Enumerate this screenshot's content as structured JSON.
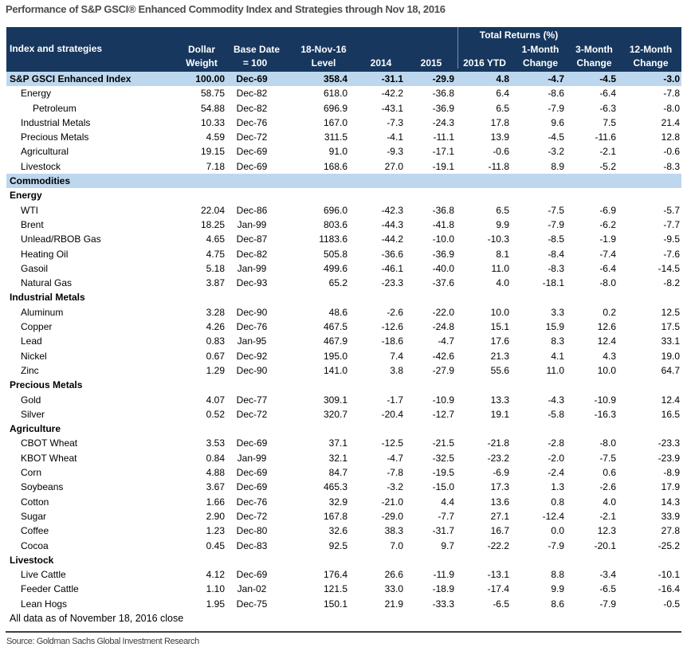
{
  "title": "Performance of S&P GSCI® Enhanced Commodity Index and Strategies through Nov 18, 2016",
  "table": {
    "group_header": "Total Returns (%)",
    "columns": [
      {
        "lines": [
          "Index and strategies"
        ]
      },
      {
        "lines": [
          "Dollar",
          "Weight"
        ]
      },
      {
        "lines": [
          "Base Date",
          "= 100"
        ]
      },
      {
        "lines": [
          "18-Nov-16",
          "Level"
        ]
      },
      {
        "lines": [
          "2014"
        ]
      },
      {
        "lines": [
          "2015"
        ]
      },
      {
        "lines": [
          "2016 YTD"
        ]
      },
      {
        "lines": [
          "1-Month",
          "Change"
        ]
      },
      {
        "lines": [
          "3-Month",
          "Change"
        ]
      },
      {
        "lines": [
          "12-Month",
          "Change"
        ]
      }
    ],
    "rows": [
      {
        "type": "index",
        "indent": 0,
        "label": "S&P GSCI Enhanced Index",
        "values": [
          "100.00",
          "Dec-69",
          "358.4",
          "-31.1",
          "-29.9",
          "4.8",
          "-4.7",
          "-4.5",
          "-3.0"
        ]
      },
      {
        "type": "data",
        "indent": 1,
        "label": "Energy",
        "values": [
          "58.75",
          "Dec-82",
          "618.0",
          "-42.2",
          "-36.8",
          "6.4",
          "-8.6",
          "-6.4",
          "-7.8"
        ]
      },
      {
        "type": "data",
        "indent": 2,
        "label": "Petroleum",
        "values": [
          "54.88",
          "Dec-82",
          "696.9",
          "-43.1",
          "-36.9",
          "6.5",
          "-7.9",
          "-6.3",
          "-8.0"
        ]
      },
      {
        "type": "data",
        "indent": 1,
        "label": "Industrial Metals",
        "values": [
          "10.33",
          "Dec-76",
          "167.0",
          "-7.3",
          "-24.3",
          "17.8",
          "9.6",
          "7.5",
          "21.4"
        ]
      },
      {
        "type": "data",
        "indent": 1,
        "label": "Precious Metals",
        "values": [
          "4.59",
          "Dec-72",
          "311.5",
          "-4.1",
          "-11.1",
          "13.9",
          "-4.5",
          "-11.6",
          "12.8"
        ]
      },
      {
        "type": "data",
        "indent": 1,
        "label": "Agricultural",
        "values": [
          "19.15",
          "Dec-69",
          "91.0",
          "-9.3",
          "-17.1",
          "-0.6",
          "-3.2",
          "-2.1",
          "-0.6"
        ]
      },
      {
        "type": "data",
        "indent": 1,
        "label": "Livestock",
        "values": [
          "7.18",
          "Dec-69",
          "168.6",
          "27.0",
          "-19.1",
          "-11.8",
          "8.9",
          "-5.2",
          "-8.3"
        ]
      },
      {
        "type": "band",
        "indent": 0,
        "label": "Commodities",
        "values": [
          "",
          "",
          "",
          "",
          "",
          "",
          "",
          "",
          ""
        ]
      },
      {
        "type": "section",
        "indent": 0,
        "label": "Energy",
        "values": [
          "",
          "",
          "",
          "",
          "",
          "",
          "",
          "",
          ""
        ]
      },
      {
        "type": "data",
        "indent": 1,
        "label": "WTI",
        "values": [
          "22.04",
          "Dec-86",
          "696.0",
          "-42.3",
          "-36.8",
          "6.5",
          "-7.5",
          "-6.9",
          "-5.7"
        ]
      },
      {
        "type": "data",
        "indent": 1,
        "label": "Brent",
        "values": [
          "18.25",
          "Jan-99",
          "803.6",
          "-44.3",
          "-41.8",
          "9.9",
          "-7.9",
          "-6.2",
          "-7.7"
        ]
      },
      {
        "type": "data",
        "indent": 1,
        "label": "Unlead/RBOB Gas",
        "values": [
          "4.65",
          "Dec-87",
          "1183.6",
          "-44.2",
          "-10.0",
          "-10.3",
          "-8.5",
          "-1.9",
          "-9.5"
        ]
      },
      {
        "type": "data",
        "indent": 1,
        "label": "Heating Oil",
        "values": [
          "4.75",
          "Dec-82",
          "505.8",
          "-36.6",
          "-36.9",
          "8.1",
          "-8.4",
          "-7.4",
          "-7.6"
        ]
      },
      {
        "type": "data",
        "indent": 1,
        "label": "Gasoil",
        "values": [
          "5.18",
          "Jan-99",
          "499.6",
          "-46.1",
          "-40.0",
          "11.0",
          "-8.3",
          "-6.4",
          "-14.5"
        ]
      },
      {
        "type": "data",
        "indent": 1,
        "label": "Natural Gas",
        "values": [
          "3.87",
          "Dec-93",
          "65.2",
          "-23.3",
          "-37.6",
          "4.0",
          "-18.1",
          "-8.0",
          "-8.2"
        ]
      },
      {
        "type": "section",
        "indent": 0,
        "label": "Industrial Metals",
        "values": [
          "",
          "",
          "",
          "",
          "",
          "",
          "",
          "",
          ""
        ]
      },
      {
        "type": "data",
        "indent": 1,
        "label": "Aluminum",
        "values": [
          "3.28",
          "Dec-90",
          "48.6",
          "-2.6",
          "-22.0",
          "10.0",
          "3.3",
          "0.2",
          "12.5"
        ]
      },
      {
        "type": "data",
        "indent": 1,
        "label": "Copper",
        "values": [
          "4.26",
          "Dec-76",
          "467.5",
          "-12.6",
          "-24.8",
          "15.1",
          "15.9",
          "12.6",
          "17.5"
        ]
      },
      {
        "type": "data",
        "indent": 1,
        "label": "Lead",
        "values": [
          "0.83",
          "Jan-95",
          "467.9",
          "-18.6",
          "-4.7",
          "17.6",
          "8.3",
          "12.4",
          "33.1"
        ]
      },
      {
        "type": "data",
        "indent": 1,
        "label": "Nickel",
        "values": [
          "0.67",
          "Dec-92",
          "195.0",
          "7.4",
          "-42.6",
          "21.3",
          "4.1",
          "4.3",
          "19.0"
        ]
      },
      {
        "type": "data",
        "indent": 1,
        "label": "Zinc",
        "values": [
          "1.29",
          "Dec-90",
          "141.0",
          "3.8",
          "-27.9",
          "55.6",
          "11.0",
          "10.0",
          "64.7"
        ]
      },
      {
        "type": "section",
        "indent": 0,
        "label": "Precious Metals",
        "values": [
          "",
          "",
          "",
          "",
          "",
          "",
          "",
          "",
          ""
        ]
      },
      {
        "type": "data",
        "indent": 1,
        "label": "Gold",
        "values": [
          "4.07",
          "Dec-77",
          "309.1",
          "-1.7",
          "-10.9",
          "13.3",
          "-4.3",
          "-10.9",
          "12.4"
        ]
      },
      {
        "type": "data",
        "indent": 1,
        "label": "Silver",
        "values": [
          "0.52",
          "Dec-72",
          "320.7",
          "-20.4",
          "-12.7",
          "19.1",
          "-5.8",
          "-16.3",
          "16.5"
        ]
      },
      {
        "type": "section",
        "indent": 0,
        "label": "Agriculture",
        "values": [
          "",
          "",
          "",
          "",
          "",
          "",
          "",
          "",
          ""
        ]
      },
      {
        "type": "data",
        "indent": 1,
        "label": "CBOT Wheat",
        "values": [
          "3.53",
          "Dec-69",
          "37.1",
          "-12.5",
          "-21.5",
          "-21.8",
          "-2.8",
          "-8.0",
          "-23.3"
        ]
      },
      {
        "type": "data",
        "indent": 1,
        "label": "KBOT Wheat",
        "values": [
          "0.84",
          "Jan-99",
          "32.1",
          "-4.7",
          "-32.5",
          "-23.2",
          "-2.0",
          "-7.5",
          "-23.9"
        ]
      },
      {
        "type": "data",
        "indent": 1,
        "label": "Corn",
        "values": [
          "4.88",
          "Dec-69",
          "84.7",
          "-7.8",
          "-19.5",
          "-6.9",
          "-2.4",
          "0.6",
          "-8.9"
        ]
      },
      {
        "type": "data",
        "indent": 1,
        "label": "Soybeans",
        "values": [
          "3.67",
          "Dec-69",
          "465.3",
          "-3.2",
          "-15.0",
          "17.3",
          "1.3",
          "-2.6",
          "17.9"
        ]
      },
      {
        "type": "data",
        "indent": 1,
        "label": "Cotton",
        "values": [
          "1.66",
          "Dec-76",
          "32.9",
          "-21.0",
          "4.4",
          "13.6",
          "0.8",
          "4.0",
          "14.3"
        ]
      },
      {
        "type": "data",
        "indent": 1,
        "label": "Sugar",
        "values": [
          "2.90",
          "Dec-72",
          "167.8",
          "-29.0",
          "-7.7",
          "27.1",
          "-12.4",
          "-2.1",
          "33.9"
        ]
      },
      {
        "type": "data",
        "indent": 1,
        "label": "Coffee",
        "values": [
          "1.23",
          "Dec-80",
          "32.6",
          "38.3",
          "-31.7",
          "16.7",
          "0.0",
          "12.3",
          "27.8"
        ]
      },
      {
        "type": "data",
        "indent": 1,
        "label": "Cocoa",
        "values": [
          "0.45",
          "Dec-83",
          "92.5",
          "7.0",
          "9.7",
          "-22.2",
          "-7.9",
          "-20.1",
          "-25.2"
        ]
      },
      {
        "type": "section",
        "indent": 0,
        "label": "Livestock",
        "values": [
          "",
          "",
          "",
          "",
          "",
          "",
          "",
          "",
          ""
        ]
      },
      {
        "type": "data",
        "indent": 1,
        "label": "Live Cattle",
        "values": [
          "4.12",
          "Dec-69",
          "176.4",
          "26.6",
          "-11.9",
          "-13.1",
          "8.8",
          "-3.4",
          "-10.1"
        ]
      },
      {
        "type": "data",
        "indent": 1,
        "label": "Feeder Cattle",
        "values": [
          "1.10",
          "Jan-02",
          "121.5",
          "33.0",
          "-18.9",
          "-17.4",
          "9.9",
          "-6.5",
          "-16.4"
        ]
      },
      {
        "type": "data",
        "indent": 1,
        "label": "Lean Hogs",
        "values": [
          "1.95",
          "Dec-75",
          "150.1",
          "21.9",
          "-33.3",
          "-6.5",
          "8.6",
          "-7.9",
          "-0.5"
        ]
      },
      {
        "type": "note",
        "indent": 0,
        "label": "All data as of November 18, 2016 close",
        "values": []
      }
    ]
  },
  "source": "Source: Goldman Sachs Global Investment Research",
  "colors": {
    "header_bg": "#17375E",
    "header_text": "#FFFFFF",
    "highlight_bg": "#BDD7EE",
    "title_text": "#4D4D4D",
    "body_text": "#000000",
    "rule": "#3F3F3F"
  }
}
